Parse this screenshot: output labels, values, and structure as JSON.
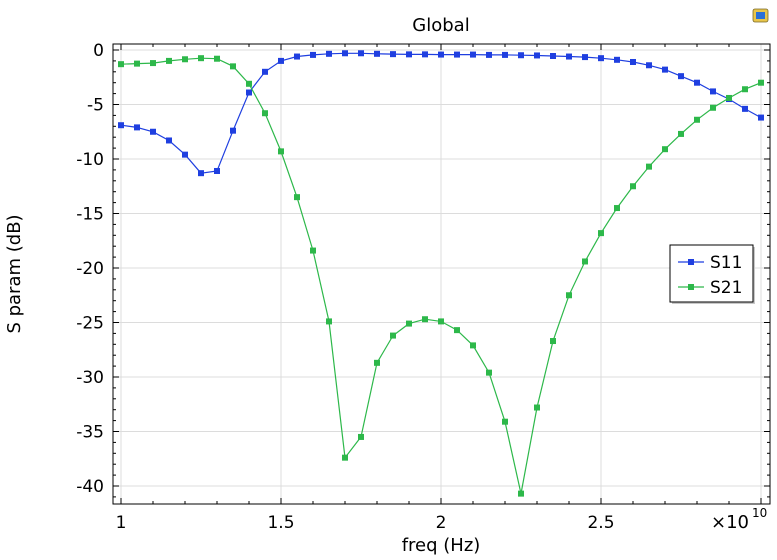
{
  "chart_data": {
    "type": "line",
    "title": "Global",
    "xlabel": "freq (Hz)",
    "ylabel": "S param (dB)",
    "x_multiplier": "×10",
    "x_multiplier_exp": "10",
    "xlim": [
      0.995,
      3.02
    ],
    "ylim": [
      -41.5,
      0.4
    ],
    "grid": true,
    "legend_position": "center-right",
    "x_ticks": [
      1,
      1.5,
      2,
      2.5
    ],
    "x_tick_labels": [
      "1",
      "1.5",
      "2",
      "2.5"
    ],
    "y_ticks": [
      0,
      -5,
      -10,
      -15,
      -20,
      -25,
      -30,
      -35,
      -40
    ],
    "y_tick_labels": [
      "0",
      "-5",
      "-10",
      "-15",
      "-20",
      "-25",
      "-30",
      "-35",
      "-40"
    ],
    "x": [
      1.0,
      1.05,
      1.1,
      1.15,
      1.2,
      1.25,
      1.3,
      1.35,
      1.4,
      1.45,
      1.5,
      1.55,
      1.6,
      1.65,
      1.7,
      1.75,
      1.8,
      1.85,
      1.9,
      1.95,
      2.0,
      2.05,
      2.1,
      2.15,
      2.2,
      2.25,
      2.3,
      2.35,
      2.4,
      2.45,
      2.5,
      2.55,
      2.6,
      2.65,
      2.7,
      2.75,
      2.8,
      2.85,
      2.9,
      2.95,
      3.0
    ],
    "series": [
      {
        "name": "S11",
        "color": "#1f3fe0",
        "values": [
          -6.9,
          -7.1,
          -7.5,
          -8.3,
          -9.6,
          -11.3,
          -11.1,
          -7.4,
          -3.9,
          -2.0,
          -1.0,
          -0.6,
          -0.45,
          -0.35,
          -0.3,
          -0.3,
          -0.35,
          -0.38,
          -0.4,
          -0.4,
          -0.42,
          -0.42,
          -0.42,
          -0.45,
          -0.45,
          -0.48,
          -0.5,
          -0.55,
          -0.6,
          -0.65,
          -0.75,
          -0.9,
          -1.1,
          -1.4,
          -1.8,
          -2.4,
          -3.0,
          -3.8,
          -4.5,
          -5.4,
          -6.2
        ]
      },
      {
        "name": "S21",
        "color": "#2db84a",
        "values": [
          -1.3,
          -1.25,
          -1.2,
          -1.0,
          -0.85,
          -0.75,
          -0.8,
          -1.5,
          -3.1,
          -5.8,
          -9.3,
          -13.5,
          -18.4,
          -24.9,
          -37.4,
          -35.5,
          -28.7,
          -26.2,
          -25.1,
          -24.7,
          -24.9,
          -25.7,
          -27.1,
          -29.6,
          -34.1,
          -40.7,
          -32.8,
          -26.7,
          -22.5,
          -19.4,
          -16.8,
          -14.5,
          -12.5,
          -10.7,
          -9.1,
          -7.7,
          -6.4,
          -5.3,
          -4.4,
          -3.6,
          -3.0
        ]
      }
    ]
  },
  "ui": {
    "corner_icon": "color-swatch-icon"
  }
}
